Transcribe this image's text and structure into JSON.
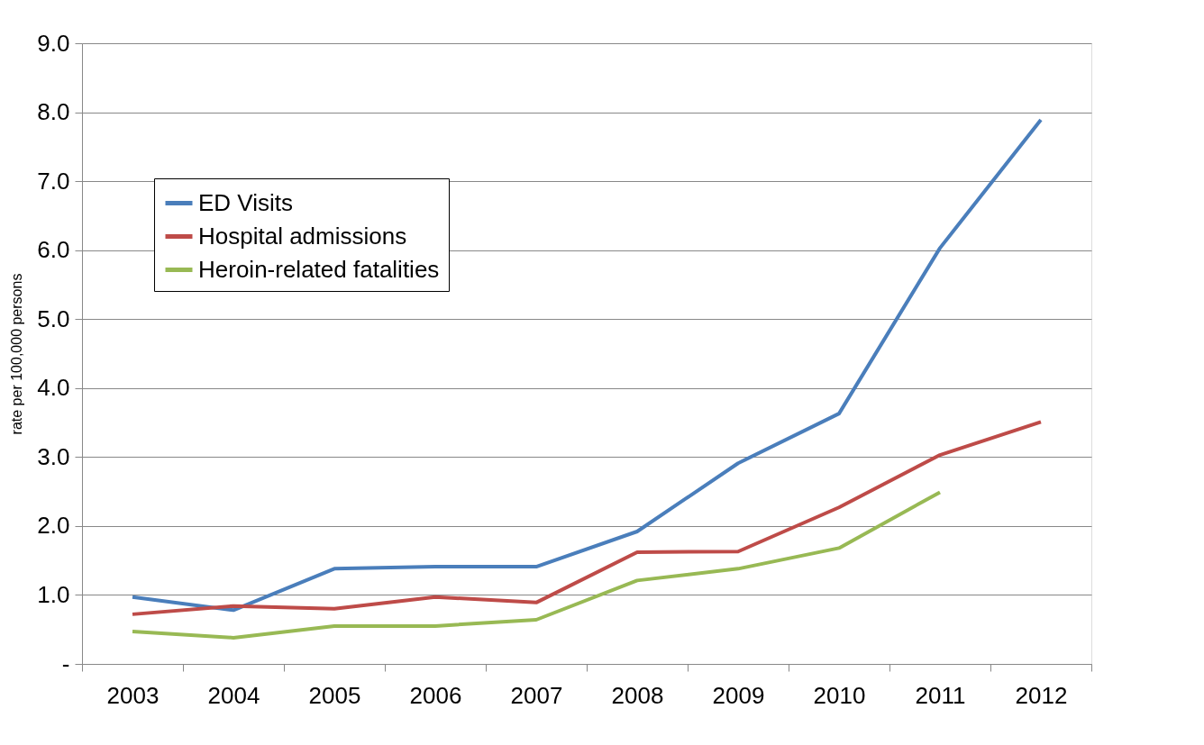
{
  "chart_data": {
    "type": "line",
    "ylabel": "rate per 100,000 persons",
    "categories": [
      "2003",
      "2004",
      "2005",
      "2006",
      "2007",
      "2008",
      "2009",
      "2010",
      "2011",
      "2012"
    ],
    "series": [
      {
        "name": "ED Visits",
        "color": "#4a7ebb",
        "values": [
          0.97,
          0.78,
          1.38,
          1.41,
          1.41,
          1.92,
          2.91,
          3.63,
          6.03,
          7.89
        ]
      },
      {
        "name": "Hospital admissions",
        "color": "#be4b48",
        "values": [
          0.72,
          0.84,
          0.8,
          0.97,
          0.89,
          1.62,
          1.63,
          2.27,
          3.03,
          3.51
        ]
      },
      {
        "name": "Heroin-related fatalities",
        "color": "#98b954",
        "values": [
          0.47,
          0.38,
          0.55,
          0.55,
          0.64,
          1.21,
          1.38,
          1.68,
          2.49,
          null
        ]
      }
    ],
    "ylim": [
      0,
      9
    ],
    "yticks": [
      {
        "value": 0,
        "label": "-"
      },
      {
        "value": 1,
        "label": "1.0"
      },
      {
        "value": 2,
        "label": "2.0"
      },
      {
        "value": 3,
        "label": "3.0"
      },
      {
        "value": 4,
        "label": "4.0"
      },
      {
        "value": 5,
        "label": "5.0"
      },
      {
        "value": 6,
        "label": "6.0"
      },
      {
        "value": 7,
        "label": "7.0"
      },
      {
        "value": 8,
        "label": "8.0"
      },
      {
        "value": 9,
        "label": "9.0"
      }
    ],
    "grid": "y",
    "legend": "top left",
    "marker": "none",
    "line_style": "solid"
  }
}
